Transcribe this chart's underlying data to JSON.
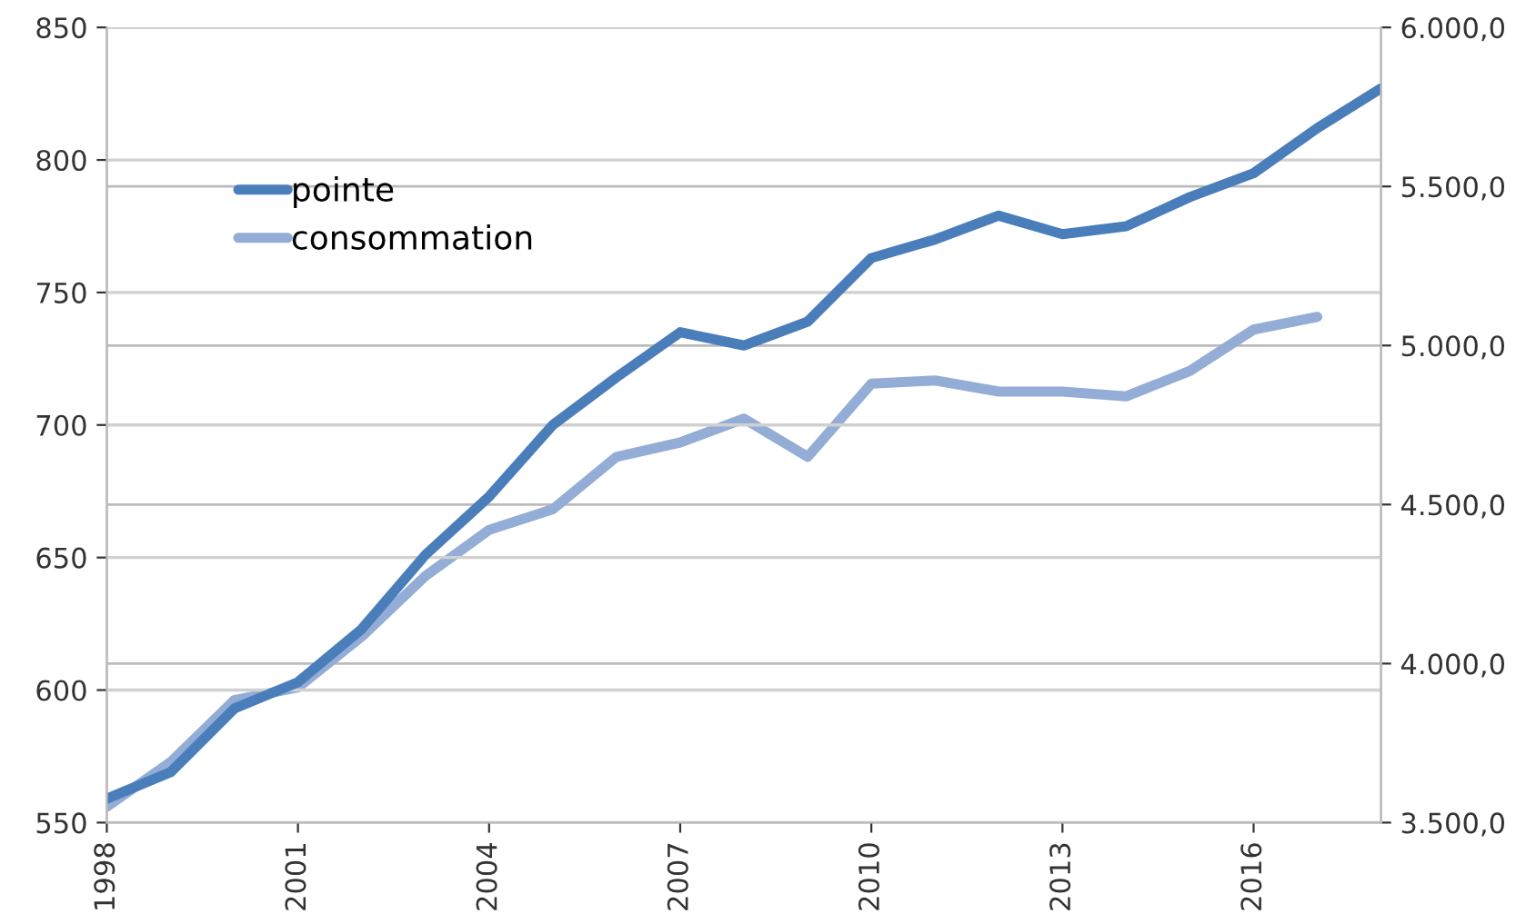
{
  "chart_data": {
    "type": "line",
    "x": [
      1998,
      1999,
      2000,
      2001,
      2002,
      2003,
      2004,
      2005,
      2006,
      2007,
      2008,
      2009,
      2010,
      2011,
      2012,
      2013,
      2014,
      2015,
      2016,
      2017,
      2018
    ],
    "series": [
      {
        "name": "pointe",
        "color": "#4a7ebb",
        "values": [
          559,
          569,
          593,
          603,
          623,
          651,
          673,
          700,
          718,
          735,
          730,
          739,
          763,
          770,
          779,
          772,
          775,
          786,
          795,
          812,
          827
        ]
      },
      {
        "name": "consommation",
        "color": "#93add6",
        "axis": "y2",
        "values": [
          3550,
          3690,
          3885,
          3925,
          4085,
          4275,
          4420,
          4485,
          4650,
          4695,
          4770,
          4650,
          4880,
          4890,
          4855,
          4855,
          4840,
          4920,
          5050,
          5090,
          null
        ]
      }
    ],
    "xlim": [
      1998,
      2018
    ],
    "xticks": [
      1998,
      2001,
      2004,
      2007,
      2010,
      2013,
      2016
    ],
    "ylim": [
      550,
      850
    ],
    "yticks": [
      550,
      600,
      650,
      700,
      750,
      800,
      850
    ],
    "y2lim": [
      3500,
      6000
    ],
    "y2ticks": [
      {
        "value": 3500,
        "label": "3.500,0"
      },
      {
        "value": 4000,
        "label": "4.000,0"
      },
      {
        "value": 4500,
        "label": "4.500,0"
      },
      {
        "value": 5000,
        "label": "5.000,0"
      },
      {
        "value": 5500,
        "label": "5.500,0"
      },
      {
        "value": 6000,
        "label": "6.000,0"
      }
    ],
    "grid": "y",
    "legend": "top left",
    "marker": "none",
    "line_style": "solid"
  }
}
